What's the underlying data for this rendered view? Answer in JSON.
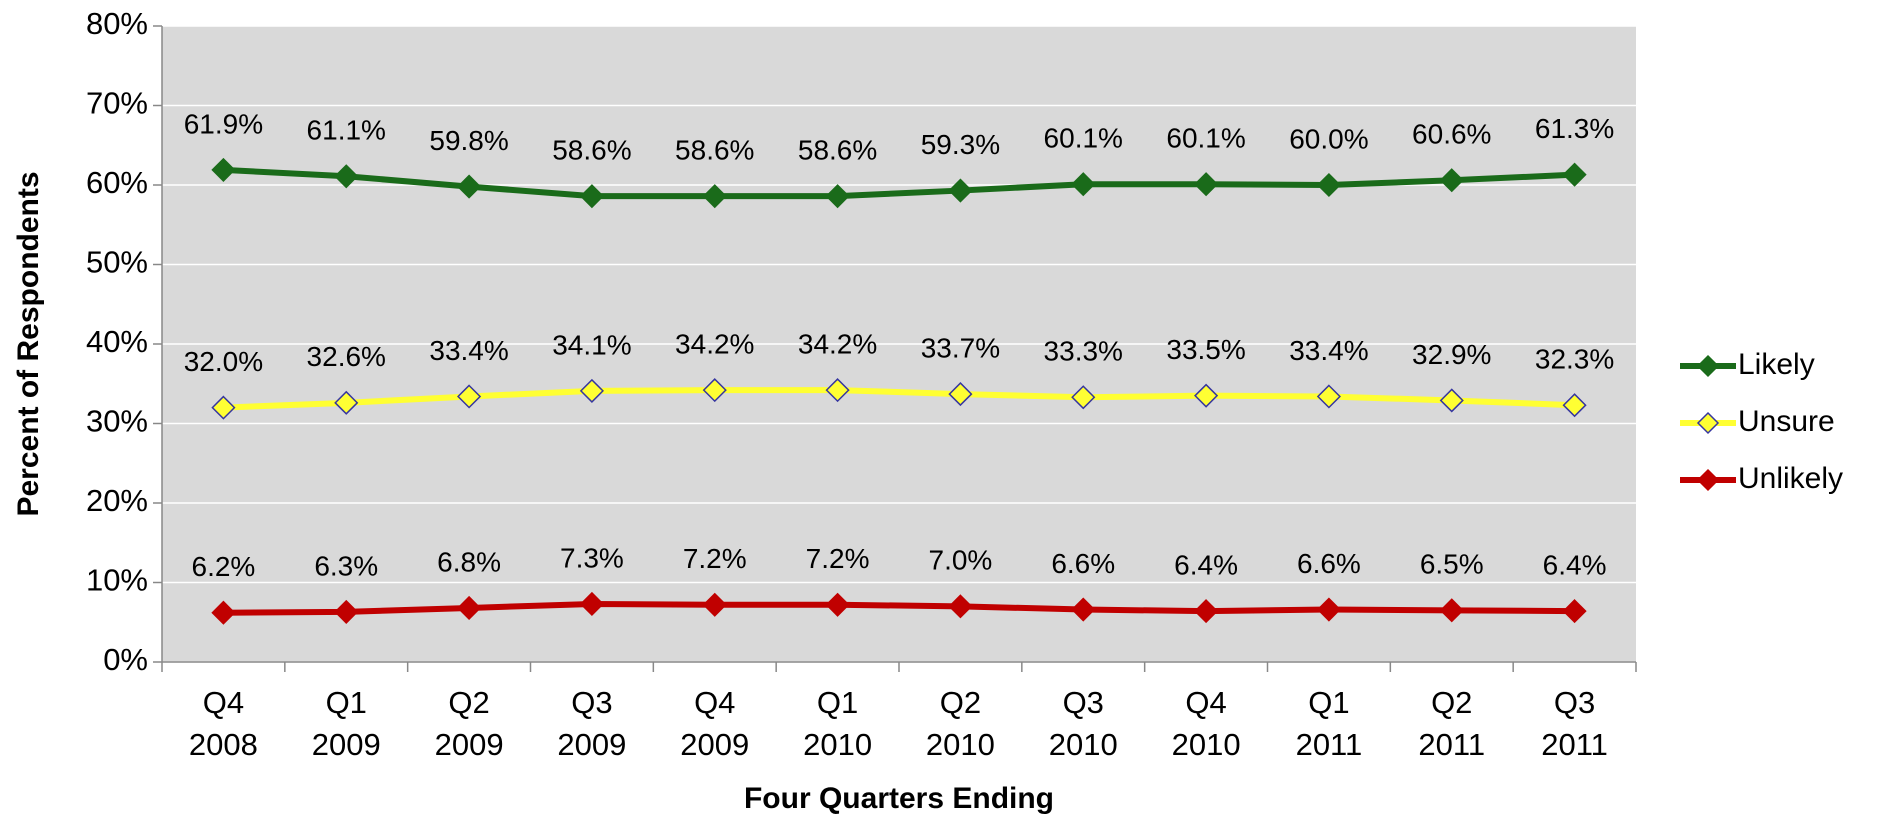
{
  "chart_data": {
    "type": "line",
    "x_label": "Four Quarters Ending",
    "y_label": "Percent of Respondents",
    "categories": [
      "Q4 2008",
      "Q1 2009",
      "Q2 2009",
      "Q3 2009",
      "Q4 2009",
      "Q1 2010",
      "Q2 2010",
      "Q3 2010",
      "Q4 2010",
      "Q1 2011",
      "Q2 2011",
      "Q3 2011"
    ],
    "series": [
      {
        "name": "Likely",
        "color": "#1a6b1a",
        "marker_edge": "#1a6b1a",
        "values": [
          61.9,
          61.1,
          59.8,
          58.6,
          58.6,
          58.6,
          59.3,
          60.1,
          60.1,
          60.0,
          60.6,
          61.3
        ],
        "value_labels": [
          "61.9%",
          "61.1%",
          "59.8%",
          "58.6%",
          "58.6%",
          "58.6%",
          "59.3%",
          "60.1%",
          "60.1%",
          "60.0%",
          "60.6%",
          "61.3%"
        ]
      },
      {
        "name": "Unsure",
        "color": "#ffff33",
        "marker_edge": "#3535a0",
        "values": [
          32.0,
          32.6,
          33.4,
          34.1,
          34.2,
          34.2,
          33.7,
          33.3,
          33.5,
          33.4,
          32.9,
          32.3
        ],
        "value_labels": [
          "32.0%",
          "32.6%",
          "33.4%",
          "34.1%",
          "34.2%",
          "34.2%",
          "33.7%",
          "33.3%",
          "33.5%",
          "33.4%",
          "32.9%",
          "32.3%"
        ]
      },
      {
        "name": "Unlikely",
        "color": "#c00000",
        "marker_edge": "#c00000",
        "values": [
          6.2,
          6.3,
          6.8,
          7.3,
          7.2,
          7.2,
          7.0,
          6.6,
          6.4,
          6.6,
          6.5,
          6.4
        ],
        "value_labels": [
          "6.2%",
          "6.3%",
          "6.8%",
          "7.3%",
          "7.2%",
          "7.2%",
          "7.0%",
          "6.6%",
          "6.4%",
          "6.6%",
          "6.5%",
          "6.4%"
        ]
      }
    ],
    "ylim": [
      0,
      80
    ],
    "yticks": [
      {
        "value": 0,
        "label": "0%"
      },
      {
        "value": 10,
        "label": "10%"
      },
      {
        "value": 20,
        "label": "20%"
      },
      {
        "value": 30,
        "label": "30%"
      },
      {
        "value": 40,
        "label": "40%"
      },
      {
        "value": 50,
        "label": "50%"
      },
      {
        "value": 60,
        "label": "60%"
      },
      {
        "value": 70,
        "label": "70%"
      },
      {
        "value": 80,
        "label": "80%"
      }
    ],
    "grid": true,
    "plot_background": "#d9d9d9",
    "legend": "right"
  }
}
